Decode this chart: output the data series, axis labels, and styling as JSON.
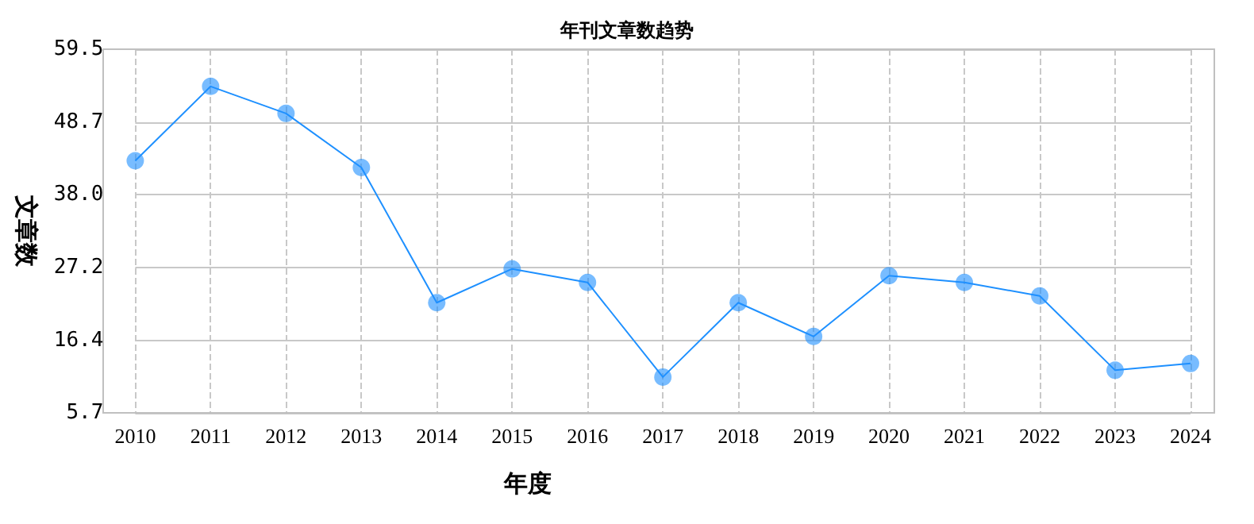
{
  "chart_data": {
    "type": "line",
    "title": "年刊文章数趋势",
    "xlabel": "年度",
    "ylabel": "文章数",
    "categories": [
      "2010",
      "2011",
      "2012",
      "2013",
      "2014",
      "2015",
      "2016",
      "2017",
      "2018",
      "2019",
      "2020",
      "2021",
      "2022",
      "2023",
      "2024"
    ],
    "series": [
      {
        "color": "#1e90ff",
        "values": [
          43,
          54,
          50,
          42,
          22,
          27,
          25,
          11,
          22,
          17,
          26,
          25,
          23,
          12,
          13
        ]
      }
    ],
    "ylim": [
      5.7,
      59.5
    ],
    "yticks": [
      5.7,
      16.4,
      27.2,
      {
        "value": 38,
        "label": "38.0"
      },
      48.7,
      59.5
    ],
    "grid": true,
    "marker": "circle",
    "line_style": "solid"
  }
}
